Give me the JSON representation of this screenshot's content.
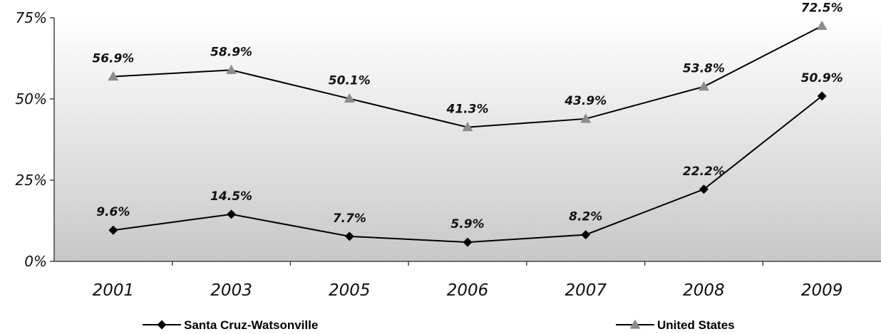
{
  "chart_data": {
    "type": "line",
    "categories": [
      "2001",
      "2003",
      "2005",
      "2006",
      "2007",
      "2008",
      "2009"
    ],
    "y_ticks": [
      "0%",
      "25%",
      "50%",
      "75%"
    ],
    "ylim": [
      0,
      75
    ],
    "grid": false,
    "legend_position": "bottom",
    "series": [
      {
        "name": "Santa Cruz-Watsonville",
        "marker": "diamond",
        "values": [
          9.6,
          14.5,
          7.7,
          5.9,
          8.2,
          22.2,
          50.9
        ],
        "labels": [
          "9.6%",
          "14.5%",
          "7.7%",
          "5.9%",
          "8.2%",
          "22.2%",
          "50.9%"
        ],
        "color": "#000000"
      },
      {
        "name": "United States",
        "marker": "triangle",
        "values": [
          56.9,
          58.9,
          50.1,
          41.3,
          43.9,
          53.8,
          72.5
        ],
        "labels": [
          "56.9%",
          "58.9%",
          "50.1%",
          "41.3%",
          "43.9%",
          "53.8%",
          "72.5%"
        ],
        "color": "#000000",
        "marker_color": "#8c8c8c"
      }
    ],
    "background_gradient": [
      "#ffffff",
      "#c8c8c8"
    ]
  }
}
